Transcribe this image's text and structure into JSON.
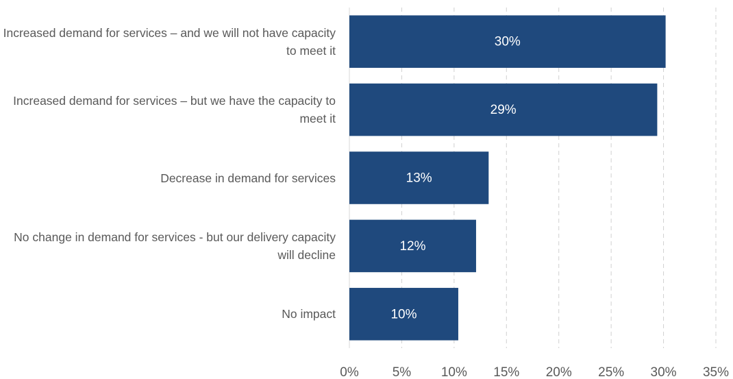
{
  "chart_data": {
    "type": "bar",
    "orientation": "horizontal",
    "categories": [
      "Increased demand for services – and we will not have capacity to meet it",
      "Increased demand for services – but we have the capacity to meet it",
      "Decrease in demand for services",
      "No change in demand for services - but our delivery capacity will decline",
      "No impact"
    ],
    "values": [
      30.2,
      29.4,
      13.3,
      12.1,
      10.4
    ],
    "value_labels": [
      "30%",
      "29%",
      "13%",
      "12%",
      "10%"
    ],
    "color": "#1f497d",
    "xlim": [
      0,
      35
    ],
    "xticks": [
      {
        "value": 0,
        "label": "0%"
      },
      {
        "value": 5,
        "label": "5%"
      },
      {
        "value": 10,
        "label": "10%"
      },
      {
        "value": 15,
        "label": "15%"
      },
      {
        "value": 20,
        "label": "20%"
      },
      {
        "value": 25,
        "label": "25%"
      },
      {
        "value": 30,
        "label": "30%"
      },
      {
        "value": 35,
        "label": "35%"
      }
    ],
    "grid": true
  }
}
